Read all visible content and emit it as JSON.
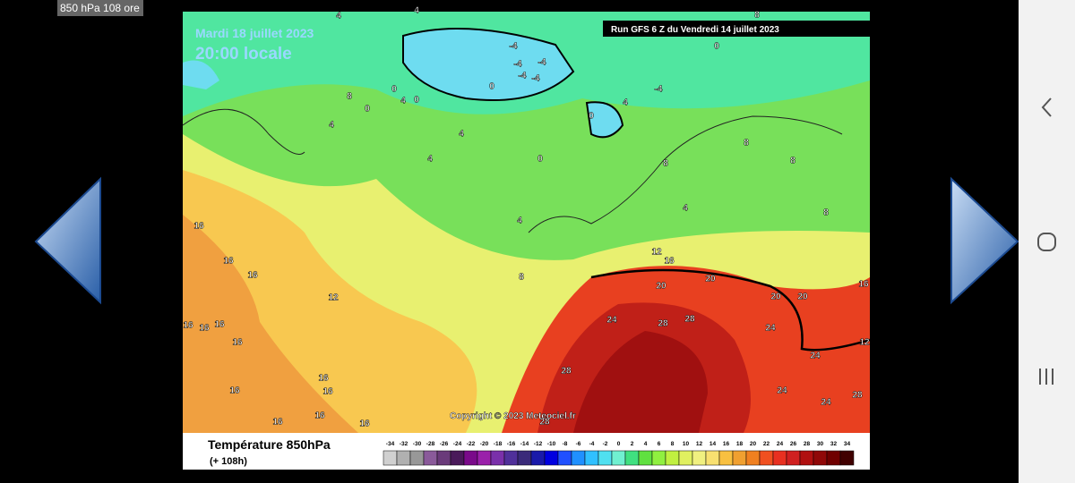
{
  "status_bar": {
    "title": "850 hPa 108 ore"
  },
  "map": {
    "date": "Mardi 18 juillet 2023",
    "time": "20:00 locale",
    "run": "Run GFS 6 Z du Vendredi 14 juillet 2023",
    "copyright": "Copyright © 2023 Meteociel.fr",
    "labels": [
      "4",
      "4",
      "0",
      "8",
      "-4",
      "-4",
      "-4",
      "-4",
      "-4",
      "0",
      "0",
      "-4",
      "4",
      "8",
      "0",
      "0",
      "4",
      "0",
      "4",
      "4",
      "4",
      "0",
      "8",
      "8",
      "8",
      "4",
      "8",
      "4",
      "8",
      "12",
      "16",
      "20",
      "20",
      "20",
      "20",
      "24",
      "28",
      "28",
      "24",
      "24",
      "28",
      "24",
      "24",
      "28",
      "12",
      "16",
      "16",
      "16",
      "16",
      "16",
      "16",
      "16",
      "16",
      "16",
      "16",
      "16",
      "16",
      "16",
      "28",
      "16",
      "12"
    ]
  },
  "legend": {
    "title": "Température 850hPa",
    "subtitle": "(+ 108h)",
    "scale": [
      -34,
      -32,
      -30,
      -28,
      -26,
      -24,
      -22,
      -20,
      -18,
      -16,
      -14,
      -12,
      -10,
      -8,
      -6,
      -4,
      -2,
      0,
      2,
      4,
      6,
      8,
      10,
      12,
      14,
      16,
      18,
      20,
      22,
      24,
      26,
      28,
      30,
      32,
      34
    ],
    "colors": [
      "#d0d0d0",
      "#b0b0b0",
      "#989898",
      "#8a5a9a",
      "#6a3a7a",
      "#4a1a5a",
      "#7a0a8a",
      "#9a20aa",
      "#7a30aa",
      "#50309a",
      "#3a2a7a",
      "#1a1aaa",
      "#0000e0",
      "#2050ff",
      "#2090ff",
      "#30c0ff",
      "#50e0f0",
      "#70f0d0",
      "#40e080",
      "#60e040",
      "#90f040",
      "#c0f040",
      "#e0f060",
      "#f0f080",
      "#f8e070",
      "#f8c040",
      "#f0a030",
      "#f08020",
      "#f05020",
      "#e83020",
      "#d02020",
      "#b01010",
      "#900808",
      "#700000",
      "#400000"
    ]
  }
}
